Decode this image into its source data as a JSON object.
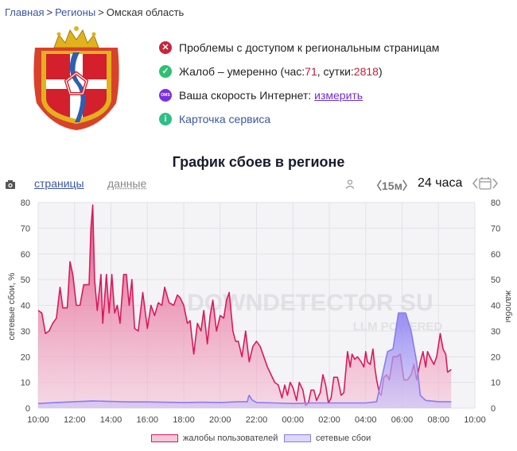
{
  "breadcrumb": {
    "home": "Главная",
    "regions": "Регионы",
    "current": "Омская область"
  },
  "status": {
    "access_problems": "Проблемы с доступом к региональным страницам",
    "complaints_prefix": "Жалоб – умеренно (час: ",
    "hour_value": "71",
    "day_label": ", сутки: ",
    "day_value": "2818",
    "complaints_suffix": ")",
    "speed_text": "Ваша скорость Интернет: ",
    "speed_link": "измерить",
    "service_card": "Карточка сервиса",
    "icon_speed_label": "OMS",
    "icon_info_label": "i"
  },
  "chart_title": "График сбоев в регионе",
  "tabs": {
    "pages": "страницы",
    "data": "данные"
  },
  "controls": {
    "step": "〈15м〉",
    "range": "24 часа"
  },
  "colors": {
    "complaints": "#d81b5a",
    "network": "#8a7cf0",
    "accent": "#3b56a6"
  },
  "chart_data": {
    "type": "area",
    "ylabel_left": "сетевые сбои, %",
    "ylabel_right": "жалобы",
    "ylim": [
      0,
      80
    ],
    "yticks": [
      0,
      10,
      20,
      30,
      40,
      50,
      60,
      70,
      80
    ],
    "xticks": [
      "10:00",
      "12:00",
      "14:00",
      "16:00",
      "18:00",
      "20:00",
      "22:00",
      "00:00",
      "02:00",
      "04:00",
      "06:00",
      "08:00",
      "10:00"
    ],
    "x_hours_start": 10,
    "grid": true,
    "watermark": [
      "DOWNDETECTOR SU",
      "LLM POWERED"
    ],
    "legend": [
      "жалобы пользователей",
      "сетевые сбои"
    ],
    "legend_position": "bottom",
    "series": [
      {
        "name": "жалобы пользователей",
        "points": [
          [
            0,
            38
          ],
          [
            0.2,
            37
          ],
          [
            0.4,
            29
          ],
          [
            0.6,
            30
          ],
          [
            0.8,
            33
          ],
          [
            1.0,
            35
          ],
          [
            1.2,
            47
          ],
          [
            1.35,
            39
          ],
          [
            1.6,
            39
          ],
          [
            1.75,
            57
          ],
          [
            1.9,
            52
          ],
          [
            2.1,
            40
          ],
          [
            2.3,
            40
          ],
          [
            2.5,
            48
          ],
          [
            2.65,
            48
          ],
          [
            2.8,
            48
          ],
          [
            2.9,
            70
          ],
          [
            3.0,
            79
          ],
          [
            3.1,
            50
          ],
          [
            3.25,
            38
          ],
          [
            3.45,
            52
          ],
          [
            3.55,
            33
          ],
          [
            3.75,
            52
          ],
          [
            3.9,
            37
          ],
          [
            4.05,
            52
          ],
          [
            4.2,
            37
          ],
          [
            4.35,
            40
          ],
          [
            4.5,
            33
          ],
          [
            4.7,
            52
          ],
          [
            4.85,
            52
          ],
          [
            5.0,
            40
          ],
          [
            5.15,
            50
          ],
          [
            5.3,
            31
          ],
          [
            5.5,
            30
          ],
          [
            5.75,
            45
          ],
          [
            6.0,
            31
          ],
          [
            6.2,
            40
          ],
          [
            6.4,
            36
          ],
          [
            6.6,
            41
          ],
          [
            6.8,
            40
          ],
          [
            6.95,
            47
          ],
          [
            7.2,
            41
          ],
          [
            7.45,
            40
          ],
          [
            7.65,
            44
          ],
          [
            7.8,
            43
          ],
          [
            8.0,
            40
          ],
          [
            8.2,
            33
          ],
          [
            8.35,
            34
          ],
          [
            8.55,
            21
          ],
          [
            8.75,
            33
          ],
          [
            8.95,
            30
          ],
          [
            9.1,
            38
          ],
          [
            9.3,
            25
          ],
          [
            9.45,
            36
          ],
          [
            9.6,
            42
          ],
          [
            9.8,
            30
          ],
          [
            10.0,
            36
          ],
          [
            10.2,
            35
          ],
          [
            10.35,
            42
          ],
          [
            10.5,
            45
          ],
          [
            10.7,
            30
          ],
          [
            10.85,
            26
          ],
          [
            11.0,
            26
          ],
          [
            11.2,
            20
          ],
          [
            11.4,
            30
          ],
          [
            11.6,
            18
          ],
          [
            11.8,
            24
          ],
          [
            12.0,
            26
          ],
          [
            12.2,
            24
          ],
          [
            12.4,
            20
          ],
          [
            12.6,
            16
          ],
          [
            12.8,
            13
          ],
          [
            13.0,
            10
          ],
          [
            13.2,
            9
          ],
          [
            13.4,
            4
          ],
          [
            13.55,
            9
          ],
          [
            13.7,
            5
          ],
          [
            13.85,
            10
          ],
          [
            14.0,
            8
          ],
          [
            14.2,
            3
          ],
          [
            14.35,
            10
          ],
          [
            14.55,
            7
          ],
          [
            14.7,
            1
          ],
          [
            14.85,
            2
          ],
          [
            15.0,
            7
          ],
          [
            15.15,
            7
          ],
          [
            15.3,
            3
          ],
          [
            15.5,
            6
          ],
          [
            15.65,
            13
          ],
          [
            15.8,
            9
          ],
          [
            15.95,
            2
          ],
          [
            16.1,
            4
          ],
          [
            16.25,
            12
          ],
          [
            16.45,
            12
          ],
          [
            16.65,
            5
          ],
          [
            16.8,
            6
          ],
          [
            17.0,
            22
          ],
          [
            17.15,
            16
          ],
          [
            17.25,
            21
          ],
          [
            17.4,
            19
          ],
          [
            17.55,
            20
          ],
          [
            17.75,
            18
          ],
          [
            17.9,
            16
          ],
          [
            18.0,
            22
          ],
          [
            18.1,
            18
          ],
          [
            18.25,
            17
          ],
          [
            18.4,
            23
          ],
          [
            18.5,
            16
          ],
          [
            18.6,
            11
          ],
          [
            18.75,
            6
          ],
          [
            18.85,
            5
          ],
          [
            19.0,
            12
          ],
          [
            19.15,
            13
          ],
          [
            19.3,
            11
          ],
          [
            19.5,
            20
          ],
          [
            19.7,
            20
          ],
          [
            19.9,
            21
          ],
          [
            20.1,
            11
          ],
          [
            20.3,
            11
          ],
          [
            20.5,
            13
          ],
          [
            20.65,
            17
          ],
          [
            20.8,
            11
          ],
          [
            21.0,
            18
          ],
          [
            21.15,
            22
          ],
          [
            21.3,
            16
          ],
          [
            21.4,
            22
          ],
          [
            21.6,
            19
          ],
          [
            21.75,
            17
          ],
          [
            21.9,
            20
          ],
          [
            22.1,
            29
          ],
          [
            22.25,
            23
          ],
          [
            22.4,
            21
          ],
          [
            22.5,
            14
          ],
          [
            22.7,
            15
          ]
        ]
      },
      {
        "name": "сетевые сбои",
        "points": [
          [
            0,
            1.8
          ],
          [
            1,
            2.2
          ],
          [
            2,
            2.5
          ],
          [
            3,
            2.8
          ],
          [
            4,
            2.6
          ],
          [
            5,
            2.4
          ],
          [
            6,
            2.4
          ],
          [
            7,
            2.3
          ],
          [
            8,
            2.2
          ],
          [
            9,
            2.3
          ],
          [
            10,
            2.2
          ],
          [
            11,
            2.5
          ],
          [
            11.5,
            2.5
          ],
          [
            11.55,
            4.2
          ],
          [
            11.6,
            5
          ],
          [
            11.75,
            3.2
          ],
          [
            12,
            2.2
          ],
          [
            13,
            2.0
          ],
          [
            14,
            1.8
          ],
          [
            15,
            2.0
          ],
          [
            16,
            2.0
          ],
          [
            17,
            2.0
          ],
          [
            18.0,
            2.0
          ],
          [
            18.6,
            2.5
          ],
          [
            19.2,
            22
          ],
          [
            19.5,
            23
          ],
          [
            19.8,
            37
          ],
          [
            20.2,
            37
          ],
          [
            20.5,
            30
          ],
          [
            20.8,
            18
          ],
          [
            21.0,
            5
          ],
          [
            21.3,
            3
          ],
          [
            22,
            2.5
          ],
          [
            22.7,
            2.5
          ]
        ]
      }
    ]
  }
}
